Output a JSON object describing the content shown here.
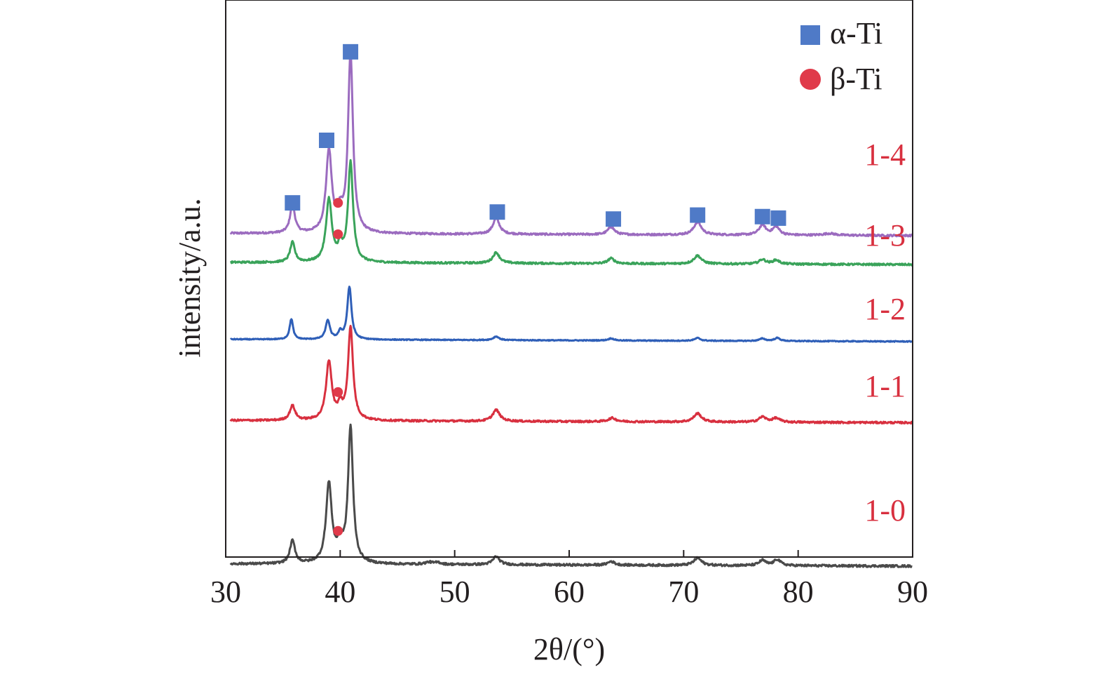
{
  "chart_data": {
    "type": "line",
    "title": "",
    "xlabel": "2θ/(°)",
    "ylabel": "intensity/a.u.",
    "xlim": [
      30,
      90
    ],
    "xticks": [
      30,
      40,
      50,
      60,
      70,
      80,
      90
    ],
    "y_ticks_shown": false,
    "grid": false,
    "legend_position": "top-right",
    "legend": [
      {
        "label": "α-Ti",
        "marker": "square",
        "color": "#4f7ac7"
      },
      {
        "label": "β-Ti",
        "marker": "circle",
        "color": "#e03a4a"
      }
    ],
    "series": [
      {
        "name": "1-4",
        "color": "#9b6bbf",
        "baseline": 0.95,
        "noise": 0.006,
        "peaks": [
          [
            35.5,
            0.95,
            0.25
          ],
          [
            38.7,
            2.68,
            0.3
          ],
          [
            39.7,
            0.55,
            0.25
          ],
          [
            40.6,
            5.85,
            0.26
          ],
          [
            53.4,
            0.52,
            0.35
          ],
          [
            63.5,
            0.25,
            0.35
          ],
          [
            71.1,
            0.42,
            0.4
          ],
          [
            76.8,
            0.33,
            0.35
          ],
          [
            78.0,
            0.27,
            0.35
          ],
          [
            82.7,
            0.06,
            0.6
          ]
        ]
      },
      {
        "name": "1-3",
        "color": "#3aa35a",
        "baseline": 0.0,
        "noise": 0.006,
        "peaks": [
          [
            35.5,
            0.65,
            0.25
          ],
          [
            38.7,
            2.05,
            0.3
          ],
          [
            39.7,
            0.45,
            0.25
          ],
          [
            40.6,
            3.25,
            0.26
          ],
          [
            53.4,
            0.35,
            0.35
          ],
          [
            63.5,
            0.17,
            0.35
          ],
          [
            71.1,
            0.27,
            0.4
          ],
          [
            76.8,
            0.15,
            0.35
          ],
          [
            78.0,
            0.13,
            0.35
          ]
        ]
      },
      {
        "name": "1-2",
        "color": "#2f5fb8",
        "baseline": -2.52,
        "noise": 0.003,
        "peaks": [
          [
            35.4,
            0.67,
            0.18
          ],
          [
            38.6,
            0.63,
            0.22
          ],
          [
            39.7,
            0.22,
            0.2
          ],
          [
            40.5,
            1.72,
            0.22
          ],
          [
            53.4,
            0.12,
            0.3
          ],
          [
            63.5,
            0.07,
            0.3
          ],
          [
            71.1,
            0.09,
            0.3
          ],
          [
            76.8,
            0.08,
            0.3
          ],
          [
            78.1,
            0.1,
            0.3
          ]
        ]
      },
      {
        "name": "1-1",
        "color": "#d8303f",
        "baseline": -5.18,
        "noise": 0.006,
        "peaks": [
          [
            35.5,
            0.48,
            0.28
          ],
          [
            38.7,
            1.92,
            0.3
          ],
          [
            39.7,
            0.4,
            0.25
          ],
          [
            40.6,
            3.05,
            0.26
          ],
          [
            53.4,
            0.37,
            0.38
          ],
          [
            63.6,
            0.12,
            0.4
          ],
          [
            71.1,
            0.28,
            0.4
          ],
          [
            76.8,
            0.17,
            0.38
          ],
          [
            78.0,
            0.13,
            0.38
          ]
        ]
      },
      {
        "name": "1-0",
        "color": "#4a4a4a",
        "baseline": -9.88,
        "noise": 0.007,
        "peaks": [
          [
            35.5,
            0.75,
            0.27
          ],
          [
            38.7,
            2.6,
            0.3
          ],
          [
            39.7,
            0.6,
            0.3
          ],
          [
            40.6,
            4.45,
            0.26
          ],
          [
            47.5,
            0.07,
            0.4
          ],
          [
            48.3,
            0.06,
            0.3
          ],
          [
            53.4,
            0.27,
            0.35
          ],
          [
            63.5,
            0.12,
            0.35
          ],
          [
            71.1,
            0.24,
            0.4
          ],
          [
            76.8,
            0.17,
            0.35
          ],
          [
            78.1,
            0.2,
            0.35
          ]
        ]
      }
    ],
    "alpha_markers": [
      [
        35.5,
        1.95
      ],
      [
        38.5,
        4.0
      ],
      [
        40.6,
        6.9
      ],
      [
        53.5,
        1.65
      ],
      [
        63.7,
        1.42
      ],
      [
        71.1,
        1.55
      ],
      [
        76.8,
        1.5
      ],
      [
        78.2,
        1.45
      ]
    ],
    "beta_markers": [
      [
        "1-4",
        39.5,
        1.95
      ],
      [
        "1-3",
        39.5,
        0.92
      ],
      [
        "1-1",
        39.5,
        -4.25
      ],
      [
        "1-0",
        39.5,
        -8.8
      ]
    ],
    "curve_labels": [
      {
        "text": "1-4",
        "color": "#d8303f"
      },
      {
        "text": "1-3",
        "color": "#d8303f"
      },
      {
        "text": "1-2",
        "color": "#d8303f"
      },
      {
        "text": "1-1",
        "color": "#d8303f"
      },
      {
        "text": "1-0",
        "color": "#d8303f"
      }
    ]
  }
}
